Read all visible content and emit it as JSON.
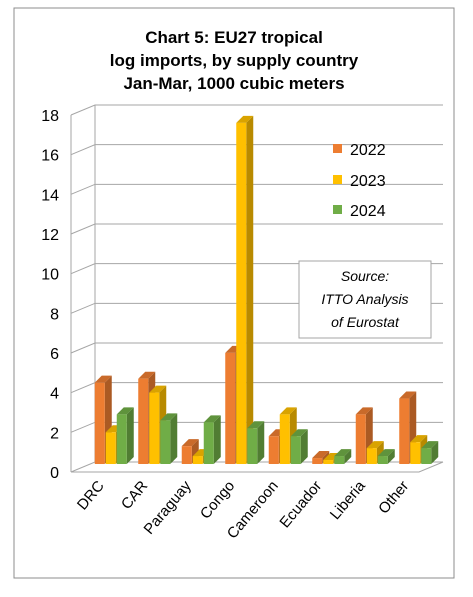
{
  "chart_data": {
    "type": "bar",
    "title_lines": [
      "Chart 5: EU27 tropical",
      "log imports, by supply country",
      "Jan-Mar, 1000 cubic meters"
    ],
    "categories": [
      "DRC",
      "CAR",
      "Paraguay",
      "Congo",
      "Cameroon",
      "Ecuador",
      "Liberia",
      "Other"
    ],
    "series": [
      {
        "name": "2022",
        "color": "#ED7D31",
        "values": [
          4.1,
          4.3,
          0.9,
          5.6,
          1.4,
          0.3,
          2.5,
          3.3
        ]
      },
      {
        "name": "2023",
        "color": "#FFC000",
        "values": [
          1.6,
          3.6,
          0.4,
          17.2,
          2.5,
          0.2,
          0.8,
          1.1
        ]
      },
      {
        "name": "2024",
        "color": "#70AD47",
        "values": [
          2.5,
          2.2,
          2.1,
          1.8,
          1.4,
          0.4,
          0.4,
          0.8
        ]
      }
    ],
    "y_ticks": [
      "0",
      "2",
      "4",
      "6",
      "8",
      "10",
      "12",
      "14",
      "16",
      "18"
    ],
    "ylim": [
      0,
      18
    ],
    "grid": true,
    "legend_position": "top-right",
    "source_lines": [
      "Source:",
      "ITTO  Analysis",
      "of Eurostat"
    ]
  }
}
